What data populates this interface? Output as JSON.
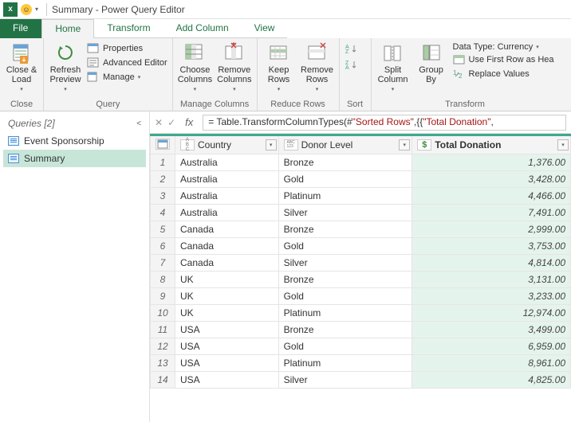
{
  "window": {
    "title": "Summary - Power Query Editor"
  },
  "tabs": {
    "file": "File",
    "home": "Home",
    "transform": "Transform",
    "addcolumn": "Add Column",
    "view": "View"
  },
  "ribbon": {
    "close": {
      "close_load": "Close &\nLoad",
      "group": "Close"
    },
    "query": {
      "refresh": "Refresh\nPreview",
      "properties": "Properties",
      "advanced": "Advanced Editor",
      "manage": "Manage",
      "group": "Query"
    },
    "manage_cols": {
      "choose": "Choose\nColumns",
      "remove": "Remove\nColumns",
      "group": "Manage Columns"
    },
    "reduce": {
      "keep": "Keep\nRows",
      "remove": "Remove\nRows",
      "group": "Reduce Rows"
    },
    "sort": {
      "group": "Sort"
    },
    "transform": {
      "split": "Split\nColumn",
      "groupby": "Group\nBy",
      "datatype": "Data Type: Currency",
      "firstrow": "Use First Row as Hea",
      "replace": "Replace Values",
      "group": "Transform"
    }
  },
  "formula": {
    "prefix": "= Table.TransformColumnTypes(#",
    "str1": "\"Sorted Rows\"",
    "mid": ",{{",
    "str2": "\"Total Donation\"",
    "suffix": ","
  },
  "queries_panel": {
    "header": "Queries [2]",
    "items": [
      {
        "label": "Event Sponsorship",
        "selected": false
      },
      {
        "label": "Summary",
        "selected": true
      }
    ]
  },
  "grid": {
    "columns": [
      {
        "name": "Country",
        "type": "ABC",
        "type2": "",
        "total": false
      },
      {
        "name": "Donor Level",
        "type": "ABC123",
        "type2": "",
        "total": false
      },
      {
        "name": "Total Donation",
        "type": "$",
        "type2": "",
        "total": true
      }
    ],
    "rows": [
      {
        "n": 1,
        "country": "Australia",
        "level": "Bronze",
        "total": "1,376.00"
      },
      {
        "n": 2,
        "country": "Australia",
        "level": "Gold",
        "total": "3,428.00"
      },
      {
        "n": 3,
        "country": "Australia",
        "level": "Platinum",
        "total": "4,466.00"
      },
      {
        "n": 4,
        "country": "Australia",
        "level": "Silver",
        "total": "7,491.00"
      },
      {
        "n": 5,
        "country": "Canada",
        "level": "Bronze",
        "total": "2,999.00"
      },
      {
        "n": 6,
        "country": "Canada",
        "level": "Gold",
        "total": "3,753.00"
      },
      {
        "n": 7,
        "country": "Canada",
        "level": "Silver",
        "total": "4,814.00"
      },
      {
        "n": 8,
        "country": "UK",
        "level": "Bronze",
        "total": "3,131.00"
      },
      {
        "n": 9,
        "country": "UK",
        "level": "Gold",
        "total": "3,233.00"
      },
      {
        "n": 10,
        "country": "UK",
        "level": "Platinum",
        "total": "12,974.00"
      },
      {
        "n": 11,
        "country": "USA",
        "level": "Bronze",
        "total": "3,499.00"
      },
      {
        "n": 12,
        "country": "USA",
        "level": "Gold",
        "total": "6,959.00"
      },
      {
        "n": 13,
        "country": "USA",
        "level": "Platinum",
        "total": "8,961.00"
      },
      {
        "n": 14,
        "country": "USA",
        "level": "Silver",
        "total": "4,825.00"
      }
    ]
  },
  "colors": {
    "accent": "#217346",
    "highlight_row": "#c8e6d8",
    "total_col_bg": "#e5f3ed",
    "header_border": "#3fa88f"
  }
}
